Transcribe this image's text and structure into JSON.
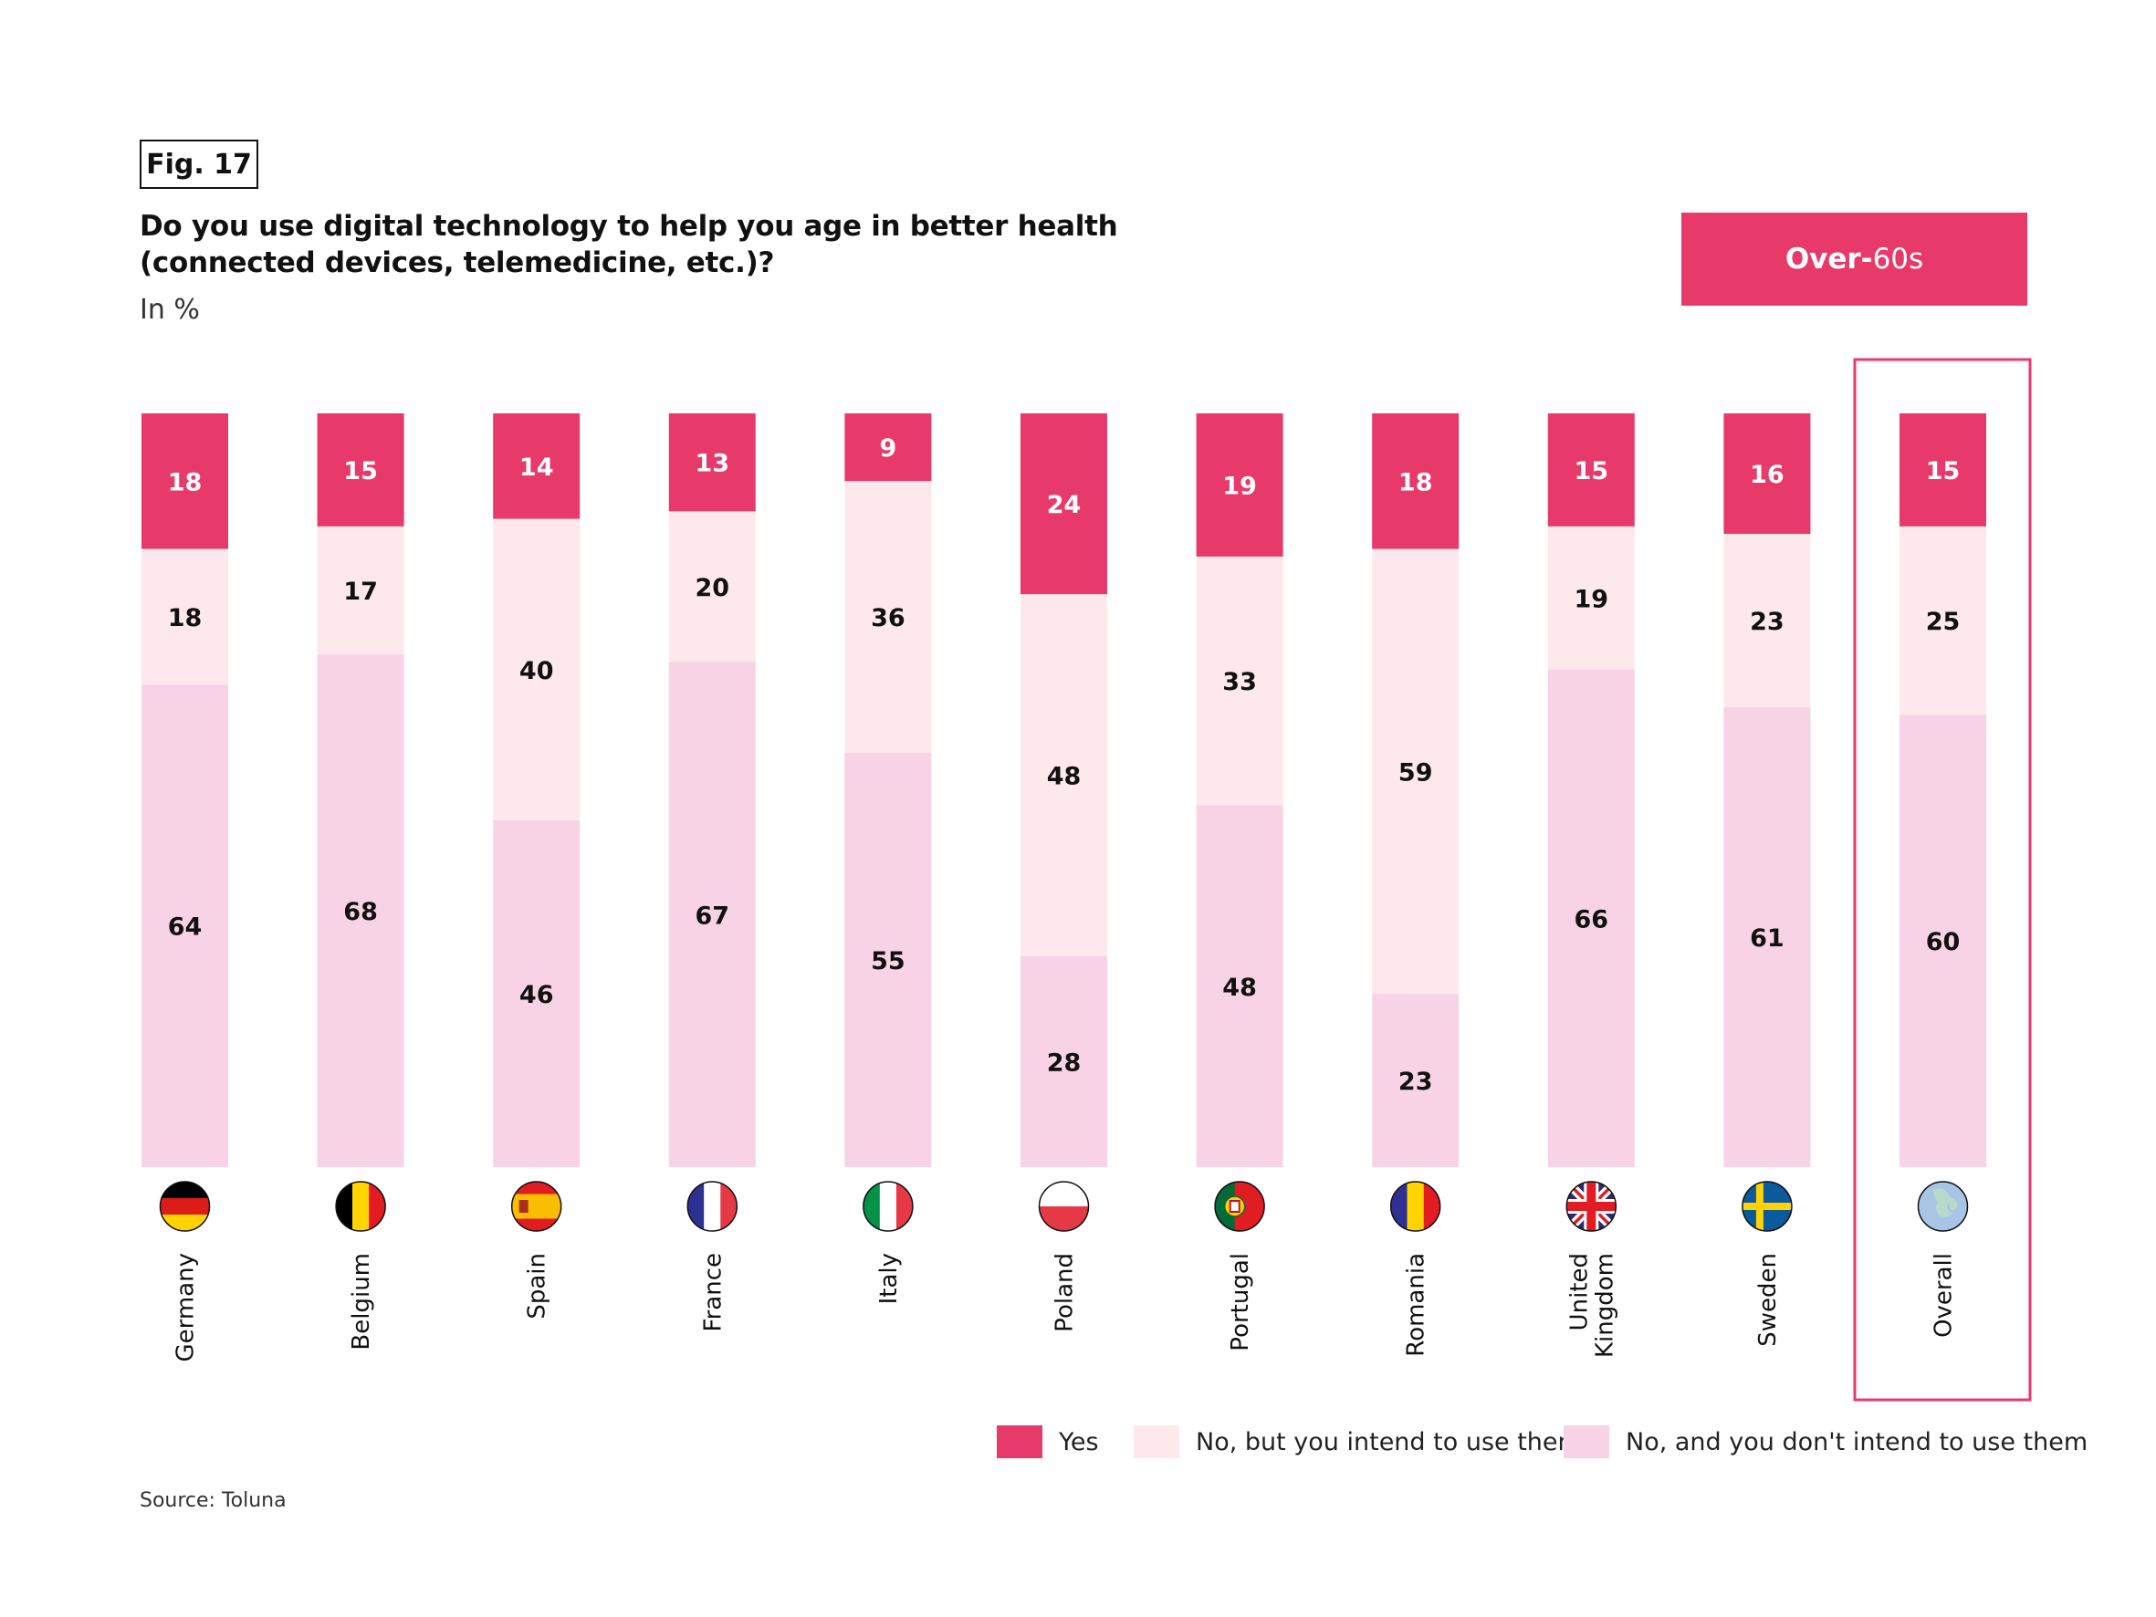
{
  "figure_label": "Fig. 17",
  "title_line1": "Do you use digital technology to help you age in better health",
  "title_line2": "(connected devices, telemedicine, etc.)?",
  "unit_label": "In %",
  "segment_badge": {
    "bold": "Over-",
    "light": "60s"
  },
  "source": "Source: Toluna",
  "colors": {
    "yes": "#E8396B",
    "intend": "#FDE9EC",
    "not_intend": "#F8D3E5",
    "highlight_border": "#E8396B"
  },
  "chart_data": {
    "type": "bar",
    "stacked": true,
    "orientation": "vertical",
    "title": "Do you use digital technology to help you age in better health (connected devices, telemedicine, etc.)?",
    "subtitle": "In %",
    "xlabel": "",
    "ylabel": "",
    "ylim": [
      0,
      100
    ],
    "grid": false,
    "legend_position": "bottom-right",
    "categories": [
      "Germany",
      "Belgium",
      "Spain",
      "France",
      "Italy",
      "Poland",
      "Portugal",
      "Romania",
      "United Kingdom",
      "Sweden",
      "Overall"
    ],
    "category_label_lines": [
      [
        "Germany"
      ],
      [
        "Belgium"
      ],
      [
        "Spain"
      ],
      [
        "France"
      ],
      [
        "Italy"
      ],
      [
        "Poland"
      ],
      [
        "Portugal"
      ],
      [
        "Romania"
      ],
      [
        "United",
        "Kingdom"
      ],
      [
        "Sweden"
      ],
      [
        "Overall"
      ]
    ],
    "category_icons": [
      "flag-germany-icon",
      "flag-belgium-icon",
      "flag-spain-icon",
      "flag-france-icon",
      "flag-italy-icon",
      "flag-poland-icon",
      "flag-portugal-icon",
      "flag-romania-icon",
      "flag-uk-icon",
      "flag-sweden-icon",
      "globe-europe-icon"
    ],
    "highlighted_category": "Overall",
    "series": [
      {
        "name": "Yes",
        "key": "yes",
        "values": [
          18,
          15,
          14,
          13,
          9,
          24,
          19,
          18,
          15,
          16,
          15
        ]
      },
      {
        "name": "No, but you intend to use them",
        "key": "intend",
        "values": [
          18,
          17,
          40,
          20,
          36,
          48,
          33,
          59,
          19,
          23,
          25
        ]
      },
      {
        "name": "No, and you don't intend to use them",
        "key": "not_intend",
        "values": [
          64,
          68,
          46,
          67,
          55,
          28,
          48,
          23,
          66,
          61,
          60
        ]
      }
    ]
  }
}
